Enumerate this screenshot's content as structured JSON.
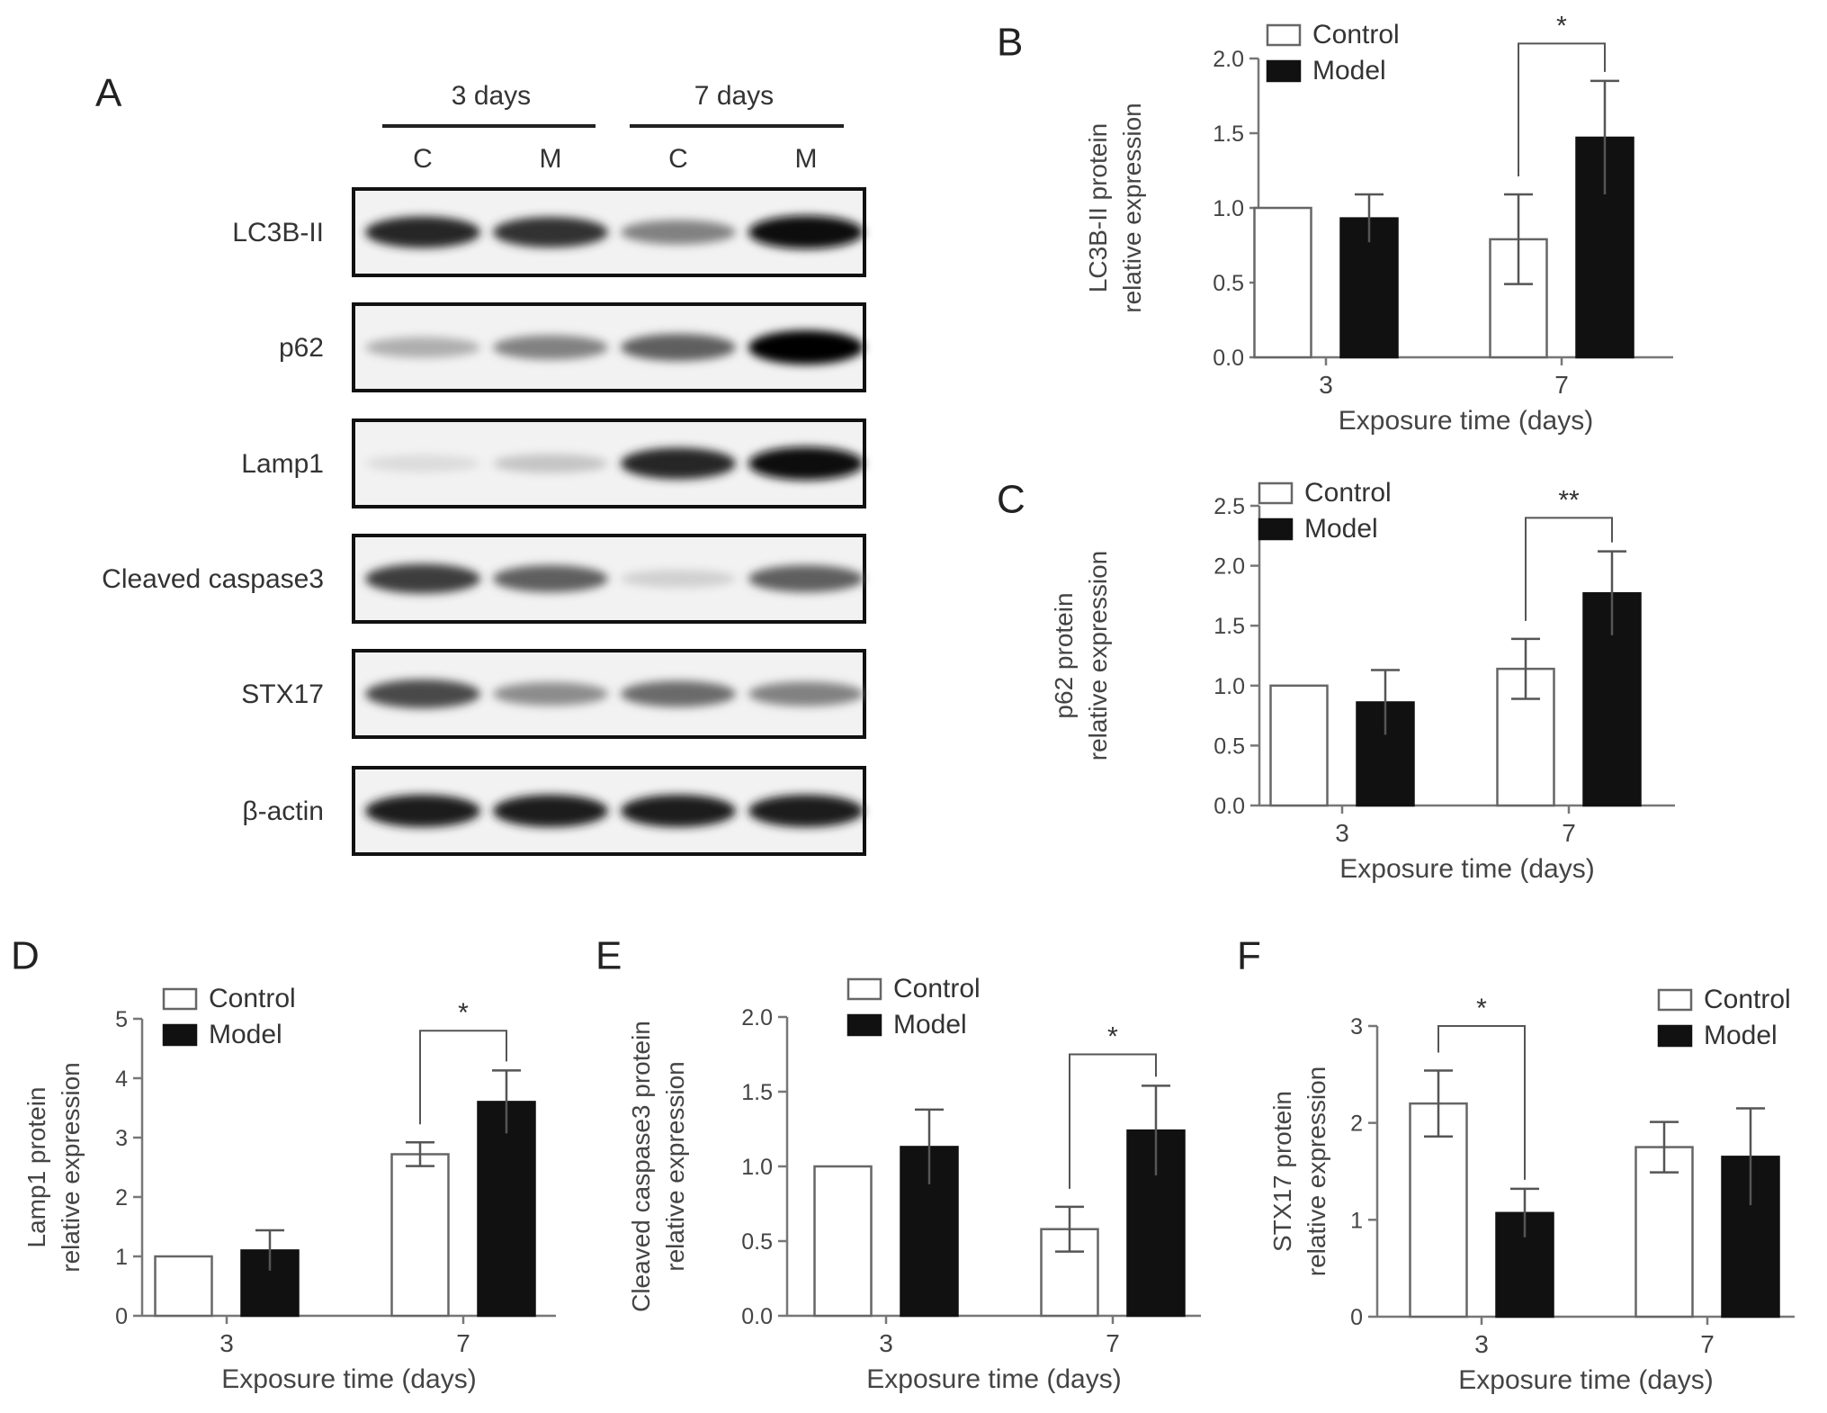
{
  "figure": {
    "panel_a": {
      "letter": "A",
      "groups": [
        "3 days",
        "7 days"
      ],
      "lanes": [
        "C",
        "M",
        "C",
        "M"
      ],
      "blots": [
        {
          "label": "LC3B-II",
          "intensities": [
            0.85,
            0.8,
            0.45,
            0.95
          ]
        },
        {
          "label": "p62",
          "intensities": [
            0.25,
            0.45,
            0.6,
            1.0
          ]
        },
        {
          "label": "Lamp1",
          "intensities": [
            0.05,
            0.15,
            0.85,
            0.95
          ]
        },
        {
          "label": "Cleaved caspase3",
          "intensities": [
            0.75,
            0.6,
            0.1,
            0.6
          ]
        },
        {
          "label": "STX17",
          "intensities": [
            0.7,
            0.4,
            0.55,
            0.45
          ]
        },
        {
          "label": "β-actin",
          "intensities": [
            0.9,
            0.9,
            0.9,
            0.9
          ]
        }
      ]
    }
  },
  "chart_data": [
    {
      "letter": "B",
      "type": "bar",
      "categories": [
        "3",
        "7"
      ],
      "xlabel": "Exposure time (days)",
      "ylabel": [
        "LC3B-II protein",
        "relative expression"
      ],
      "ylim": [
        0,
        2.0
      ],
      "yticks": [
        "0.0",
        "0.5",
        "1.0",
        "1.5",
        "2.0"
      ],
      "legend_position": "top-left",
      "series": [
        {
          "name": "Control",
          "values": [
            1.0,
            0.79
          ],
          "errors": [
            0,
            0.3
          ],
          "fill": "#ffffff"
        },
        {
          "name": "Model",
          "values": [
            0.93,
            1.47
          ],
          "errors": [
            0.16,
            0.38
          ],
          "fill": "#111111"
        }
      ],
      "significance": [
        {
          "category": 1,
          "label": "*",
          "level": 2.1
        }
      ]
    },
    {
      "letter": "C",
      "type": "bar",
      "categories": [
        "3",
        "7"
      ],
      "xlabel": "Exposure time (days)",
      "ylabel": [
        "p62 protein",
        "relative expression"
      ],
      "ylim": [
        0,
        2.5
      ],
      "yticks": [
        "0.0",
        "0.5",
        "1.0",
        "1.5",
        "2.0",
        "2.5"
      ],
      "legend_position": "top-left",
      "series": [
        {
          "name": "Control",
          "values": [
            1.0,
            1.14
          ],
          "errors": [
            0,
            0.25
          ],
          "fill": "#ffffff"
        },
        {
          "name": "Model",
          "values": [
            0.86,
            1.77
          ],
          "errors": [
            0.27,
            0.35
          ],
          "fill": "#111111"
        }
      ],
      "significance": [
        {
          "category": 1,
          "label": "**",
          "level": 2.4
        }
      ]
    },
    {
      "letter": "D",
      "type": "bar",
      "categories": [
        "3",
        "7"
      ],
      "xlabel": "Exposure time (days)",
      "ylabel": [
        "Lamp1 protein",
        "relative expression"
      ],
      "ylim": [
        0,
        5
      ],
      "yticks": [
        "0",
        "1",
        "2",
        "3",
        "4",
        "5"
      ],
      "legend_position": "top-left",
      "series": [
        {
          "name": "Control",
          "values": [
            1.0,
            2.72
          ],
          "errors": [
            0,
            0.2
          ],
          "fill": "#ffffff"
        },
        {
          "name": "Model",
          "values": [
            1.1,
            3.6
          ],
          "errors": [
            0.34,
            0.53
          ],
          "fill": "#111111"
        }
      ],
      "significance": [
        {
          "category": 1,
          "label": "*",
          "level": 4.8
        }
      ]
    },
    {
      "letter": "E",
      "type": "bar",
      "categories": [
        "3",
        "7"
      ],
      "xlabel": "Exposure time (days)",
      "ylabel": [
        "Cleaved caspase3 protein",
        "relative expression"
      ],
      "ylim": [
        0,
        2.0
      ],
      "yticks": [
        "0.0",
        "0.5",
        "1.0",
        "1.5",
        "2.0"
      ],
      "legend_position": "top-left",
      "series": [
        {
          "name": "Control",
          "values": [
            1.0,
            0.58
          ],
          "errors": [
            0,
            0.15
          ],
          "fill": "#ffffff"
        },
        {
          "name": "Model",
          "values": [
            1.13,
            1.24
          ],
          "errors": [
            0.25,
            0.3
          ],
          "fill": "#111111"
        }
      ],
      "significance": [
        {
          "category": 1,
          "label": "*",
          "level": 1.75
        }
      ]
    },
    {
      "letter": "F",
      "type": "bar",
      "categories": [
        "3",
        "7"
      ],
      "xlabel": "Exposure time (days)",
      "ylabel": [
        "STX17 protein",
        "relative expression"
      ],
      "ylim": [
        0,
        3
      ],
      "yticks": [
        "0",
        "1",
        "2",
        "3"
      ],
      "legend_position": "top-right",
      "series": [
        {
          "name": "Control",
          "values": [
            2.2,
            1.75
          ],
          "errors": [
            0.34,
            0.26
          ],
          "fill": "#ffffff"
        },
        {
          "name": "Model",
          "values": [
            1.07,
            1.65
          ],
          "errors": [
            0.25,
            0.5
          ],
          "fill": "#111111"
        }
      ],
      "significance": [
        {
          "category": 0,
          "label": "*",
          "level": 3.0
        }
      ]
    }
  ]
}
